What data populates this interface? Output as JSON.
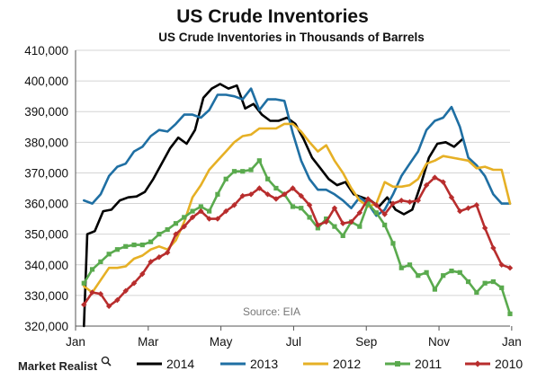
{
  "chart_data": {
    "type": "line",
    "title": "US Crude Inventories",
    "subtitle": "US Crude Inventories  in Thousands of Barrels",
    "xlabel": "",
    "ylabel": "",
    "ylim": [
      320000,
      410000
    ],
    "xlim": [
      0,
      52
    ],
    "grid": true,
    "legend_position": "bottom",
    "y_ticks": [
      {
        "value": 320000,
        "label": "320,000"
      },
      {
        "value": 330000,
        "label": "330,000"
      },
      {
        "value": 340000,
        "label": "340,000"
      },
      {
        "value": 350000,
        "label": "350,000"
      },
      {
        "value": 360000,
        "label": "360,000"
      },
      {
        "value": 370000,
        "label": "370,000"
      },
      {
        "value": 380000,
        "label": "380,000"
      },
      {
        "value": 390000,
        "label": "390,000"
      },
      {
        "value": 400000,
        "label": "400,000"
      },
      {
        "value": 410000,
        "label": "410,000"
      }
    ],
    "x_ticks": [
      {
        "value": 0,
        "label": "Jan"
      },
      {
        "value": 8.7,
        "label": "Mar"
      },
      {
        "value": 17.4,
        "label": "May"
      },
      {
        "value": 26.1,
        "label": "Jul"
      },
      {
        "value": 34.8,
        "label": "Sep"
      },
      {
        "value": 43.5,
        "label": "Nov"
      },
      {
        "value": 52.2,
        "label": "Jan"
      }
    ],
    "annotation": "Source: EIA",
    "series": [
      {
        "name": "2014",
        "color": "#000000",
        "x": [
          1,
          1.4,
          2.3,
          3.3,
          4.3,
          5.3,
          6.3,
          7.3,
          8.3,
          9.3,
          10.3,
          11.3,
          12.3,
          13.3,
          14.3,
          15.3,
          16.3,
          17.3,
          18.3,
          19.3,
          20.3,
          21.3,
          22.3,
          23.3,
          24.3,
          25.3,
          26.3,
          27.3,
          28.3,
          29.3,
          30.3,
          31.3,
          32.3,
          33.3,
          34.3,
          35.3,
          36.3,
          37.3,
          38.3,
          39.3,
          40.3,
          41.3,
          42.3,
          43.3,
          44.3,
          45.3,
          46.3
        ],
        "y": [
          320000,
          350000,
          351000,
          357500,
          358000,
          361000,
          362000,
          362300,
          363800,
          368000,
          373000,
          378000,
          381500,
          379500,
          384000,
          394500,
          397500,
          399000,
          397500,
          398500,
          391000,
          392500,
          389000,
          387000,
          387000,
          388000,
          386000,
          381000,
          375000,
          371500,
          368000,
          366000,
          367000,
          363000,
          362000,
          361000,
          359000,
          362000,
          358000,
          356500,
          358000,
          366000,
          375000,
          379500,
          380000,
          378500,
          381000
        ]
      },
      {
        "name": "2013",
        "color": "#1f6fa3",
        "x": [
          1,
          2,
          3,
          4,
          5,
          6,
          7,
          8,
          9,
          10,
          11,
          12,
          13,
          14,
          15,
          16,
          17,
          18,
          19,
          20,
          21,
          22,
          23,
          24,
          25,
          26,
          27,
          28,
          29,
          30,
          31,
          32,
          33,
          34,
          35,
          36,
          37,
          38,
          39,
          40,
          41,
          42,
          43,
          44,
          45,
          46,
          47,
          48,
          49,
          50,
          51,
          52
        ],
        "y": [
          361000,
          360000,
          363000,
          369000,
          372000,
          373000,
          377000,
          378500,
          382000,
          384000,
          383500,
          386000,
          389000,
          389000,
          388000,
          390500,
          395500,
          395500,
          395000,
          394000,
          397500,
          390500,
          394000,
          394000,
          393500,
          383000,
          374000,
          368000,
          364500,
          364500,
          363000,
          361000,
          358500,
          362000,
          360000,
          356000,
          358000,
          363000,
          369000,
          373000,
          377000,
          384000,
          387000,
          388000,
          391500,
          385000,
          375000,
          372500,
          369000,
          363000,
          360000,
          360000
        ]
      },
      {
        "name": "2012",
        "color": "#e6b025",
        "x": [
          1,
          2,
          3,
          4,
          5,
          6,
          7,
          8,
          9,
          10,
          11,
          12,
          13,
          14,
          15,
          16,
          17,
          18,
          19,
          20,
          21,
          22,
          23,
          24,
          25,
          26,
          27,
          28,
          29,
          30,
          31,
          32,
          33,
          34,
          35,
          36,
          37,
          38,
          39,
          40,
          41,
          42,
          43,
          44,
          45,
          46,
          47,
          48,
          49,
          50,
          51,
          52
        ],
        "y": [
          333000,
          331000,
          335000,
          339000,
          339000,
          339500,
          342000,
          343000,
          345000,
          346000,
          345000,
          348000,
          354000,
          362000,
          366000,
          371000,
          374000,
          377000,
          380000,
          382000,
          382500,
          384500,
          384500,
          384500,
          386000,
          386000,
          383500,
          380000,
          377000,
          379000,
          374000,
          370000,
          365000,
          361000,
          359000,
          360000,
          367000,
          365500,
          365500,
          366000,
          368000,
          373000,
          374000,
          375500,
          375000,
          374500,
          374000,
          371500,
          372000,
          371000,
          371000,
          360000
        ]
      },
      {
        "name": "2011",
        "color": "#5aaa4e",
        "x": [
          1,
          2,
          3,
          4,
          5,
          6,
          7,
          8,
          9,
          10,
          11,
          12,
          13,
          14,
          15,
          16,
          17,
          18,
          19,
          20,
          21,
          22,
          23,
          24,
          25,
          26,
          27,
          28,
          29,
          30,
          31,
          32,
          33,
          34,
          35,
          36,
          37,
          38,
          39,
          40,
          41,
          42,
          43,
          44,
          45,
          46,
          47,
          48,
          49,
          50,
          51,
          52
        ],
        "y": [
          334000,
          338500,
          341000,
          343500,
          345000,
          346000,
          346500,
          346500,
          347500,
          350000,
          351500,
          353500,
          355500,
          357500,
          359000,
          357500,
          363000,
          368000,
          370500,
          370500,
          371000,
          374000,
          368000,
          365000,
          363000,
          359000,
          358500,
          355500,
          352000,
          355000,
          352500,
          349500,
          354000,
          352500,
          360000,
          357000,
          353000,
          347000,
          339000,
          340000,
          336500,
          337500,
          332000,
          336500,
          338000,
          337500,
          334500,
          331000,
          334000,
          334500,
          332500,
          324000
        ]
      },
      {
        "name": "2010",
        "color": "#b82d2d",
        "x": [
          1,
          2,
          3,
          4,
          5,
          6,
          7,
          8,
          9,
          10,
          11,
          12,
          13,
          14,
          15,
          16,
          17,
          18,
          19,
          20,
          21,
          22,
          23,
          24,
          25,
          26,
          27,
          28,
          29,
          30,
          31,
          32,
          33,
          34,
          35,
          36,
          37,
          38,
          39,
          40,
          41,
          42,
          43,
          44,
          45,
          46,
          47,
          48,
          49,
          50,
          51,
          52
        ],
        "y": [
          327000,
          331000,
          330500,
          326500,
          328500,
          331500,
          334000,
          337000,
          341000,
          342500,
          344000,
          350000,
          352500,
          355500,
          357500,
          355000,
          355000,
          357500,
          359500,
          362500,
          363000,
          365000,
          363000,
          361500,
          363000,
          365000,
          362500,
          359500,
          353000,
          354000,
          358500,
          353500,
          354000,
          357000,
          361500,
          359500,
          356500,
          360000,
          361000,
          360500,
          361000,
          366000,
          368500,
          367000,
          362000,
          357500,
          358500,
          359500,
          352000,
          345500,
          340000,
          339000
        ]
      }
    ]
  },
  "branding": {
    "logo_text": "Market Realist",
    "logo_icon": "magnifier-icon"
  }
}
